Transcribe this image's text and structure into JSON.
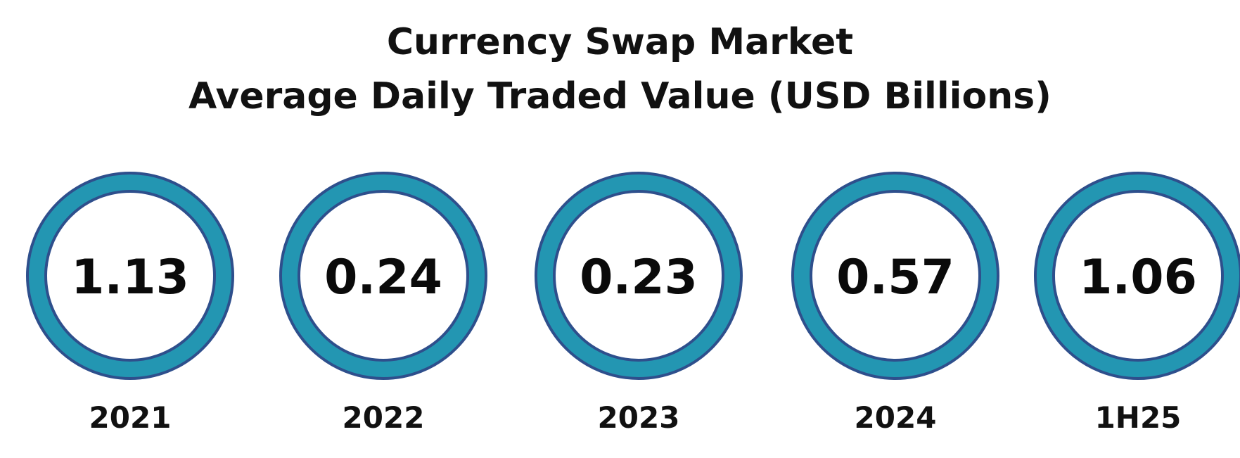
{
  "chart_data": {
    "type": "bar",
    "title": "Currency Swap Market",
    "subtitle": "Average Daily Traded Value (USD Billions)",
    "categories": [
      "2021",
      "2022",
      "2023",
      "2024",
      "1H25"
    ],
    "values": [
      "1.13",
      "0.24",
      "0.23",
      "0.57",
      "1.06"
    ],
    "colors": {
      "ring": "#2396b2",
      "ring_border": "#2e4f8c",
      "inner": "#ffffff",
      "text": "#0a0a0a"
    }
  }
}
